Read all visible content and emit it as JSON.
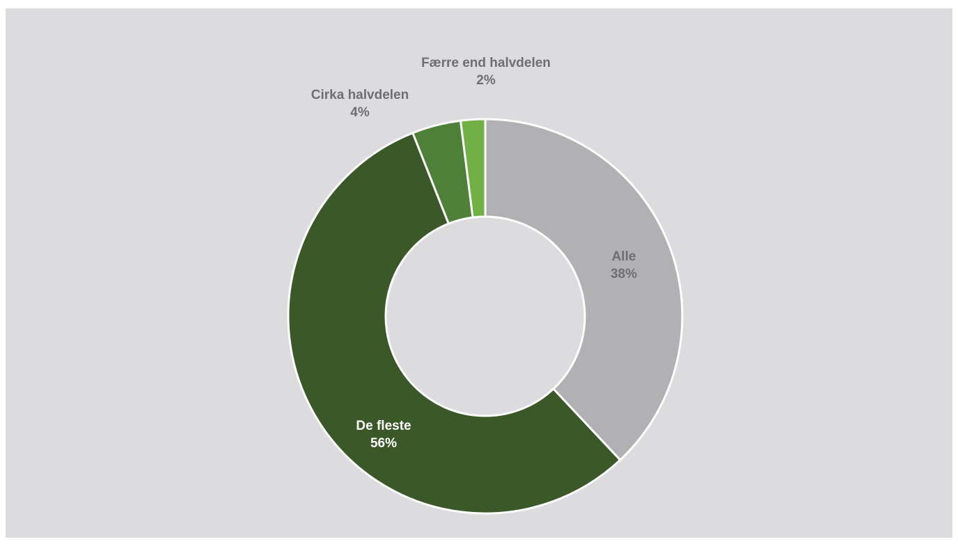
{
  "chart_data": {
    "type": "pie",
    "variant": "donut",
    "start": "top (12 o'clock)",
    "direction": "clockwise",
    "slices": [
      {
        "category": "Alle",
        "value": 38,
        "value_label": "38%",
        "color": "#b1b1b4",
        "label_color": "#6f6f72"
      },
      {
        "category": "De fleste",
        "value": 56,
        "value_label": "56%",
        "color": "#3b5829",
        "label_color": "#ffffff"
      },
      {
        "category": "Cirka halvdelen",
        "value": 4,
        "value_label": "4%",
        "color": "#4f8039",
        "label_color": "#6f6f72"
      },
      {
        "category": "Færre end halvdelen",
        "value": 2,
        "value_label": "2%",
        "color": "#71b045",
        "label_color": "#6f6f72"
      }
    ],
    "slice_border_color": "#ffffff",
    "panel_background": "#dcdcde",
    "legend": "none"
  }
}
